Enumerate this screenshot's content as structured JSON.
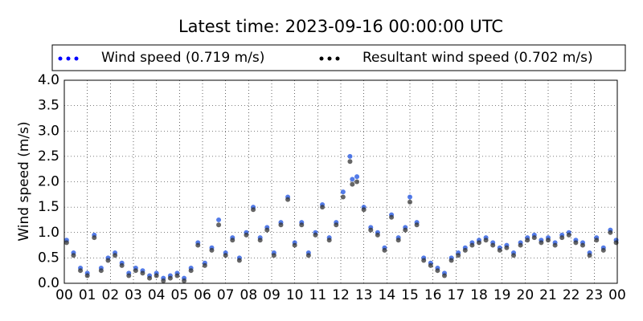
{
  "chart_data": {
    "type": "scatter",
    "title": "Latest time: 2023-09-16 00:00:00 UTC",
    "y_label": "Wind speed (m/s)",
    "grid": true,
    "xlim": [
      0,
      24
    ],
    "ylim": [
      0,
      4
    ],
    "xticks": [
      {
        "value": 0,
        "label": "00"
      },
      {
        "value": 1,
        "label": "01"
      },
      {
        "value": 2,
        "label": "02"
      },
      {
        "value": 3,
        "label": "03"
      },
      {
        "value": 4,
        "label": "04"
      },
      {
        "value": 5,
        "label": "05"
      },
      {
        "value": 6,
        "label": "06"
      },
      {
        "value": 7,
        "label": "07"
      },
      {
        "value": 8,
        "label": "08"
      },
      {
        "value": 9,
        "label": "09"
      },
      {
        "value": 10,
        "label": "10"
      },
      {
        "value": 11,
        "label": "11"
      },
      {
        "value": 12,
        "label": "12"
      },
      {
        "value": 13,
        "label": "13"
      },
      {
        "value": 14,
        "label": "14"
      },
      {
        "value": 15,
        "label": "15"
      },
      {
        "value": 16,
        "label": "16"
      },
      {
        "value": 17,
        "label": "17"
      },
      {
        "value": 18,
        "label": "18"
      },
      {
        "value": 19,
        "label": "19"
      },
      {
        "value": 20,
        "label": "20"
      },
      {
        "value": 21,
        "label": "21"
      },
      {
        "value": 22,
        "label": "22"
      },
      {
        "value": 23,
        "label": "23"
      },
      {
        "value": 24,
        "label": "00"
      }
    ],
    "yticks": [
      {
        "value": 0,
        "label": "0.0"
      },
      {
        "value": 0.5,
        "label": "0.5"
      },
      {
        "value": 1,
        "label": "1.0"
      },
      {
        "value": 1.5,
        "label": "1.5"
      },
      {
        "value": 2,
        "label": "2.0"
      },
      {
        "value": 2.5,
        "label": "2.5"
      },
      {
        "value": 3,
        "label": "3.0"
      },
      {
        "value": 3.5,
        "label": "3.5"
      },
      {
        "value": 4,
        "label": "4.0"
      }
    ],
    "x": [
      0.1,
      0.4,
      0.7,
      1.0,
      1.3,
      1.6,
      1.9,
      2.2,
      2.5,
      2.8,
      3.1,
      3.4,
      3.7,
      4.0,
      4.3,
      4.6,
      4.9,
      5.2,
      5.5,
      5.8,
      6.1,
      6.4,
      6.7,
      7.0,
      7.3,
      7.6,
      7.9,
      8.2,
      8.5,
      8.8,
      9.1,
      9.4,
      9.7,
      10.0,
      10.3,
      10.6,
      10.9,
      11.2,
      11.5,
      11.8,
      12.1,
      12.4,
      12.5,
      12.7,
      13.0,
      13.3,
      13.6,
      13.9,
      14.2,
      14.5,
      14.8,
      15.0,
      15.3,
      15.6,
      15.9,
      16.2,
      16.5,
      16.8,
      17.1,
      17.4,
      17.7,
      18.0,
      18.3,
      18.6,
      18.9,
      19.2,
      19.5,
      19.8,
      20.1,
      20.4,
      20.7,
      21.0,
      21.3,
      21.6,
      21.9,
      22.2,
      22.5,
      22.8,
      23.1,
      23.4,
      23.7,
      23.95
    ],
    "series": [
      {
        "name": "Wind speed (0.719 m/s)",
        "color": "#1a4fe0",
        "values": [
          0.85,
          0.6,
          0.3,
          0.2,
          0.95,
          0.3,
          0.5,
          0.6,
          0.4,
          0.2,
          0.3,
          0.25,
          0.15,
          0.2,
          0.1,
          0.15,
          0.2,
          0.1,
          0.3,
          0.8,
          0.4,
          0.7,
          1.25,
          0.6,
          0.9,
          0.5,
          1.0,
          1.5,
          0.9,
          1.1,
          0.6,
          1.2,
          1.7,
          0.8,
          1.2,
          0.6,
          1.0,
          1.55,
          0.9,
          1.2,
          1.8,
          2.5,
          2.05,
          2.1,
          1.5,
          1.1,
          1.0,
          0.7,
          1.35,
          0.9,
          1.1,
          1.7,
          1.2,
          0.5,
          0.4,
          0.3,
          0.2,
          0.5,
          0.6,
          0.7,
          0.8,
          0.85,
          0.9,
          0.8,
          0.7,
          0.75,
          0.6,
          0.8,
          0.9,
          0.95,
          0.85,
          0.9,
          0.8,
          0.95,
          1.0,
          0.85,
          0.8,
          0.6,
          0.9,
          0.7,
          1.05,
          0.85
        ]
      },
      {
        "name": "Resultant wind speed (0.702 m/s)",
        "color": "#333333",
        "values": [
          0.8,
          0.55,
          0.25,
          0.15,
          0.9,
          0.25,
          0.45,
          0.55,
          0.35,
          0.15,
          0.25,
          0.2,
          0.1,
          0.15,
          0.05,
          0.1,
          0.15,
          0.05,
          0.25,
          0.75,
          0.35,
          0.65,
          1.15,
          0.55,
          0.85,
          0.45,
          0.95,
          1.45,
          0.85,
          1.05,
          0.55,
          1.15,
          1.65,
          0.75,
          1.15,
          0.55,
          0.95,
          1.5,
          0.85,
          1.15,
          1.7,
          2.4,
          1.95,
          2.0,
          1.45,
          1.05,
          0.95,
          0.65,
          1.3,
          0.85,
          1.05,
          1.6,
          1.15,
          0.45,
          0.35,
          0.25,
          0.15,
          0.45,
          0.55,
          0.65,
          0.75,
          0.8,
          0.85,
          0.75,
          0.65,
          0.7,
          0.55,
          0.75,
          0.85,
          0.9,
          0.8,
          0.85,
          0.75,
          0.9,
          0.95,
          0.8,
          0.75,
          0.55,
          0.85,
          0.65,
          1.0,
          0.8
        ]
      }
    ]
  }
}
